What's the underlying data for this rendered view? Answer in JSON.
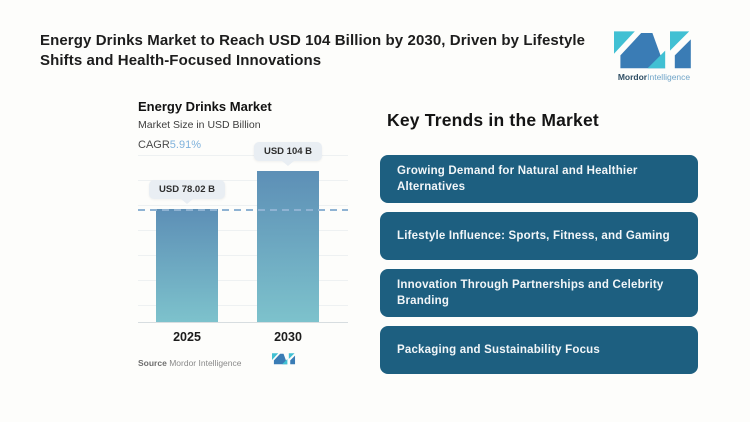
{
  "header": {
    "title": "Energy Drinks Market to Reach USD 104 Billion by 2030, Driven by Lifestyle Shifts and Health-Focused Innovations",
    "brand": {
      "name_bold": "Mordor",
      "name_light": "Intelligence"
    }
  },
  "chart": {
    "title": "Energy Drinks Market",
    "subtitle": "Market Size in USD Billion",
    "cagr_label": "CAGR",
    "cagr_value": "5.91%",
    "source_label": "Source",
    "source_value": "Mordor Intelligence"
  },
  "chart_data": {
    "type": "bar",
    "title": "Energy Drinks Market",
    "ylabel": "Market Size in USD Billion",
    "xlabel": "",
    "categories": [
      "2025",
      "2030"
    ],
    "values": [
      78.02,
      104
    ],
    "value_labels": [
      "USD 78.02 B",
      "USD 104 B"
    ],
    "cagr": "5.91%",
    "ylim": [
      0,
      120
    ],
    "grid": true,
    "annotations": [
      "dashed reference line at 2025 value (78.02)"
    ]
  },
  "trends": {
    "heading": "Key Trends in the Market",
    "items": [
      "Growing Demand for Natural and Healthier Alternatives",
      "Lifestyle Influence: Sports, Fitness, and Gaming",
      "Innovation Through Partnerships and Celebrity Branding",
      "Packaging and Sustainability Focus"
    ]
  },
  "colors": {
    "trend_box": "#1d5f80",
    "bar_top": "#5d8fb6",
    "bar_bottom": "#7dc2cc",
    "dashed": "#8fb3d3",
    "cagr_value": "#7fb2dc",
    "logo_blue": "#3a7cb5",
    "logo_teal": "#41c0d3",
    "bubble_bg": "#e9eef3"
  }
}
